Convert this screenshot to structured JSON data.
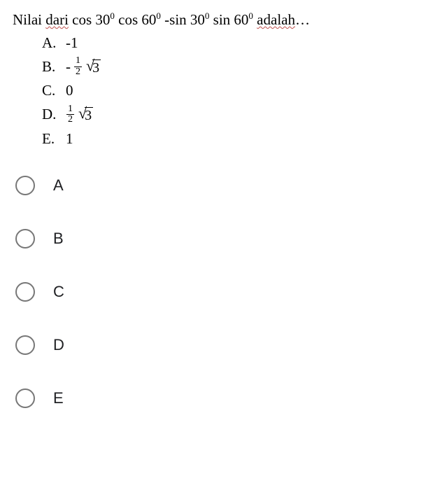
{
  "question": {
    "prefix": "Nilai ",
    "underlined1": "dari",
    "mid": " cos 30",
    "sup0a": "0",
    "t1": " cos 60",
    "sup0b": "0",
    "t2": " -sin 30",
    "sup0c": "0",
    "t3": " sin 60",
    "sup0d": "0",
    "t4": " ",
    "underlined2": "adalah",
    "tail": "…"
  },
  "answers": {
    "A": {
      "letter": "A.",
      "value": "-1"
    },
    "B": {
      "letter": "B.",
      "neg": "-",
      "frac_num": "1",
      "frac_den": "2",
      "rad": "3"
    },
    "C": {
      "letter": "C.",
      "value": "0"
    },
    "D": {
      "letter": "D.",
      "frac_num": "1",
      "frac_den": "2",
      "rad": "3"
    },
    "E": {
      "letter": "E.",
      "value": "1"
    }
  },
  "choices": {
    "A": "A",
    "B": "B",
    "C": "C",
    "D": "D",
    "E": "E"
  },
  "styling": {
    "background_color": "#ffffff",
    "text_color": "#000000",
    "wave_color": "#c0504d",
    "radio_border": "#777777",
    "choice_text_color": "#202124",
    "serif_font": "Times New Roman",
    "sans_font": "Arial",
    "question_fontsize": 21,
    "choice_fontsize": 22,
    "radio_size": 28,
    "choice_row_height": 76
  }
}
